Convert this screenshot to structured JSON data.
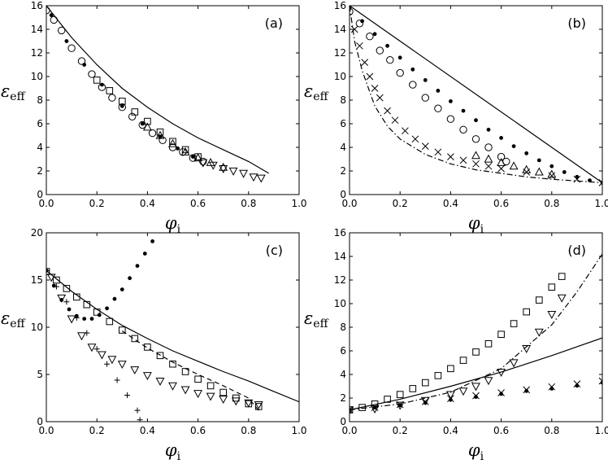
{
  "chart_data": [
    {
      "type": "scatter",
      "panel_label": "(a)",
      "xlabel": "φ",
      "xlabel_sub": "i",
      "ylabel": "ε",
      "ylabel_sub": "eff",
      "xlim": [
        0,
        1.0
      ],
      "ylim": [
        0,
        16
      ],
      "xticks": [
        0.0,
        0.2,
        0.4,
        0.6,
        0.8,
        1.0
      ],
      "yticks": [
        0,
        2,
        4,
        6,
        8,
        10,
        12,
        14,
        16
      ],
      "xtick_labels": [
        "0.0",
        "0.2",
        "0.4",
        "0.6",
        "0.8",
        "1.0"
      ],
      "ytick_labels": [
        "0",
        "2",
        "4",
        "6",
        "8",
        "10",
        "12",
        "14",
        "16"
      ],
      "grid": false,
      "series": [
        {
          "marker": "line",
          "style": "solid",
          "x": [
            0.0,
            0.1,
            0.2,
            0.3,
            0.4,
            0.5,
            0.6,
            0.7,
            0.8,
            0.88
          ],
          "y": [
            16.0,
            13.3,
            11.0,
            9.0,
            7.4,
            6.0,
            4.8,
            3.8,
            2.8,
            1.8
          ]
        },
        {
          "marker": "circle",
          "x": [
            0.0,
            0.03,
            0.06,
            0.1,
            0.14,
            0.18,
            0.22,
            0.26,
            0.3,
            0.34,
            0.38,
            0.42,
            0.46,
            0.5,
            0.54,
            0.58,
            0.62
          ],
          "y": [
            15.6,
            14.8,
            13.9,
            12.4,
            11.3,
            10.2,
            9.1,
            8.2,
            7.4,
            6.6,
            5.9,
            5.2,
            4.6,
            4.0,
            3.6,
            3.1,
            2.8
          ]
        },
        {
          "marker": "dot",
          "x": [
            0.02,
            0.08,
            0.15,
            0.22,
            0.3,
            0.38,
            0.45,
            0.52,
            0.58
          ],
          "y": [
            15.2,
            13.0,
            11.0,
            9.3,
            7.5,
            6.0,
            4.9,
            3.9,
            3.2
          ]
        },
        {
          "marker": "square",
          "x": [
            0.2,
            0.25,
            0.3,
            0.35,
            0.4,
            0.45,
            0.5,
            0.55,
            0.6
          ],
          "y": [
            9.7,
            8.8,
            7.9,
            7.0,
            6.2,
            5.3,
            4.5,
            3.8,
            3.2
          ]
        },
        {
          "marker": "triangle-up",
          "x": [
            0.4,
            0.45,
            0.5,
            0.55,
            0.6,
            0.65,
            0.7
          ],
          "y": [
            5.7,
            5.0,
            4.3,
            3.6,
            3.1,
            2.7,
            2.3
          ]
        },
        {
          "marker": "triangle-down",
          "x": [
            0.62,
            0.66,
            0.7,
            0.74,
            0.78,
            0.82,
            0.85
          ],
          "y": [
            2.7,
            2.5,
            2.2,
            2.0,
            1.8,
            1.5,
            1.4
          ]
        }
      ]
    },
    {
      "type": "scatter",
      "panel_label": "(b)",
      "xlabel": "φ",
      "xlabel_sub": "i",
      "ylabel": "ε",
      "ylabel_sub": "eff",
      "xlim": [
        0,
        1.0
      ],
      "ylim": [
        0,
        16
      ],
      "xticks": [
        0.0,
        0.2,
        0.4,
        0.6,
        0.8,
        1.0
      ],
      "yticks": [
        0,
        2,
        4,
        6,
        8,
        10,
        12,
        14,
        16
      ],
      "xtick_labels": [
        "0.0",
        "0.2",
        "0.4",
        "0.6",
        "0.8",
        "1.0"
      ],
      "ytick_labels": [
        "0",
        "2",
        "4",
        "6",
        "8",
        "10",
        "12",
        "14",
        "16"
      ],
      "grid": false,
      "series": [
        {
          "marker": "line",
          "style": "solid",
          "x": [
            0.0,
            1.0
          ],
          "y": [
            16.0,
            1.0
          ]
        },
        {
          "marker": "line",
          "style": "dashdot",
          "x": [
            0.0,
            0.02,
            0.05,
            0.1,
            0.15,
            0.2,
            0.3,
            0.4,
            0.5,
            0.6,
            0.7,
            0.8,
            0.9,
            1.0
          ],
          "y": [
            16.0,
            13.0,
            10.5,
            7.5,
            5.8,
            4.7,
            3.4,
            2.6,
            2.1,
            1.8,
            1.5,
            1.3,
            1.15,
            1.0
          ]
        },
        {
          "marker": "dot",
          "x": [
            0.0,
            0.05,
            0.1,
            0.15,
            0.2,
            0.25,
            0.3,
            0.35,
            0.4,
            0.45,
            0.5,
            0.55,
            0.6,
            0.65,
            0.7,
            0.75,
            0.8,
            0.85,
            0.9,
            0.95,
            1.0
          ],
          "y": [
            15.8,
            14.7,
            13.6,
            12.6,
            11.6,
            10.6,
            9.7,
            8.8,
            7.9,
            7.1,
            6.3,
            5.5,
            4.8,
            4.1,
            3.5,
            2.9,
            2.4,
            1.9,
            1.5,
            1.2,
            1.0
          ]
        },
        {
          "marker": "circle",
          "x": [
            0.0,
            0.04,
            0.08,
            0.12,
            0.16,
            0.2,
            0.25,
            0.3,
            0.35,
            0.4,
            0.45,
            0.5,
            0.55,
            0.6,
            0.62
          ],
          "y": [
            15.5,
            14.5,
            13.4,
            12.2,
            11.4,
            10.3,
            9.3,
            8.2,
            7.3,
            6.4,
            5.5,
            4.7,
            4.0,
            3.2,
            2.8
          ]
        },
        {
          "marker": "cross",
          "x": [
            0.02,
            0.04,
            0.06,
            0.08,
            0.1,
            0.12,
            0.15,
            0.18,
            0.22,
            0.26,
            0.3,
            0.35,
            0.4,
            0.45,
            0.5,
            0.55,
            0.6,
            0.7,
            0.8,
            0.9,
            1.0
          ],
          "y": [
            14.0,
            12.6,
            11.2,
            10.0,
            9.0,
            8.2,
            7.1,
            6.3,
            5.4,
            4.7,
            4.1,
            3.6,
            3.2,
            2.9,
            2.6,
            2.4,
            2.2,
            1.9,
            1.6,
            1.3,
            1.0
          ]
        },
        {
          "marker": "triangle-up",
          "x": [
            0.5,
            0.55,
            0.6,
            0.65,
            0.7,
            0.75,
            0.8
          ],
          "y": [
            3.3,
            3.0,
            2.7,
            2.4,
            2.1,
            1.9,
            1.7
          ]
        }
      ]
    },
    {
      "type": "scatter",
      "panel_label": "(c)",
      "xlabel": "φ",
      "xlabel_sub": "i",
      "ylabel": "ε",
      "ylabel_sub": "eff",
      "xlim": [
        0,
        1.0
      ],
      "ylim": [
        0,
        20
      ],
      "xticks": [
        0.0,
        0.2,
        0.4,
        0.6,
        0.8,
        1.0
      ],
      "yticks": [
        0,
        5,
        10,
        15,
        20
      ],
      "xtick_labels": [
        "0.0",
        "0.2",
        "0.4",
        "0.6",
        "0.8",
        "1.0"
      ],
      "ytick_labels": [
        "0",
        "5",
        "10",
        "15",
        "20"
      ],
      "grid": false,
      "series": [
        {
          "marker": "line",
          "style": "solid",
          "x": [
            0.0,
            0.1,
            0.2,
            0.3,
            0.4,
            0.5,
            0.6,
            0.7,
            0.8,
            0.9,
            1.0
          ],
          "y": [
            16.0,
            13.8,
            11.9,
            10.2,
            8.8,
            7.5,
            6.4,
            5.3,
            4.3,
            3.2,
            2.1
          ]
        },
        {
          "marker": "line",
          "style": "dashed",
          "x": [
            0.3,
            0.4,
            0.5,
            0.6,
            0.7,
            0.8,
            0.84
          ],
          "y": [
            9.6,
            7.8,
            6.3,
            5.0,
            3.8,
            2.5,
            1.2
          ]
        },
        {
          "marker": "dot",
          "x": [
            0.0,
            0.03,
            0.06,
            0.09,
            0.12,
            0.15,
            0.18,
            0.21,
            0.24,
            0.27,
            0.3,
            0.33,
            0.36,
            0.39,
            0.42
          ],
          "y": [
            16.0,
            14.4,
            12.9,
            11.9,
            11.2,
            10.9,
            10.9,
            11.3,
            12.0,
            13.0,
            14.0,
            15.2,
            16.5,
            17.8,
            19.1
          ]
        },
        {
          "marker": "plus",
          "x": [
            0.0,
            0.04,
            0.08,
            0.12,
            0.16,
            0.2,
            0.24,
            0.28,
            0.32,
            0.36,
            0.37
          ],
          "y": [
            16.0,
            14.3,
            12.7,
            11.0,
            9.4,
            7.7,
            6.1,
            4.4,
            2.8,
            1.2,
            0.2
          ]
        },
        {
          "marker": "square",
          "x": [
            0.0,
            0.04,
            0.08,
            0.12,
            0.16,
            0.2,
            0.25,
            0.3,
            0.35,
            0.4,
            0.45,
            0.5,
            0.55,
            0.6,
            0.65,
            0.7,
            0.75,
            0.8,
            0.84
          ],
          "y": [
            15.9,
            15.0,
            14.1,
            13.2,
            12.4,
            11.6,
            10.6,
            9.7,
            8.8,
            7.9,
            7.0,
            6.1,
            5.3,
            4.5,
            3.8,
            3.1,
            2.5,
            1.9,
            1.6
          ]
        },
        {
          "marker": "triangle-down",
          "x": [
            0.02,
            0.06,
            0.1,
            0.14,
            0.18,
            0.22,
            0.26,
            0.3,
            0.35,
            0.4,
            0.45,
            0.5,
            0.55,
            0.6,
            0.65,
            0.7,
            0.75,
            0.8,
            0.84
          ],
          "y": [
            15.3,
            13.1,
            10.9,
            9.1,
            7.9,
            7.1,
            6.6,
            6.1,
            5.5,
            4.9,
            4.3,
            3.8,
            3.4,
            3.0,
            2.7,
            2.4,
            2.2,
            2.0,
            1.8
          ]
        }
      ]
    },
    {
      "type": "scatter",
      "panel_label": "(d)",
      "xlabel": "φ",
      "xlabel_sub": "i",
      "ylabel": "ε",
      "ylabel_sub": "eff",
      "xlim": [
        0,
        1.0
      ],
      "ylim": [
        0,
        16
      ],
      "xticks": [
        0.0,
        0.2,
        0.4,
        0.6,
        0.8,
        1.0
      ],
      "yticks": [
        0,
        2,
        4,
        6,
        8,
        10,
        12,
        14,
        16
      ],
      "xtick_labels": [
        "0.0",
        "0.2",
        "0.4",
        "0.6",
        "0.8",
        "1.0"
      ],
      "ytick_labels": [
        "0",
        "2",
        "4",
        "6",
        "8",
        "10",
        "12",
        "14",
        "16"
      ],
      "grid": false,
      "series": [
        {
          "marker": "line",
          "style": "solid",
          "x": [
            0.0,
            0.2,
            0.4,
            0.6,
            0.8,
            1.0
          ],
          "y": [
            1.0,
            1.9,
            3.0,
            4.2,
            5.6,
            7.1
          ]
        },
        {
          "marker": "line",
          "style": "dashdot",
          "x": [
            0.0,
            0.2,
            0.4,
            0.6,
            0.8,
            0.9,
            1.0
          ],
          "y": [
            1.0,
            1.5,
            2.5,
            4.5,
            8.2,
            11.0,
            14.2
          ]
        },
        {
          "marker": "cross",
          "x": [
            0.0,
            0.1,
            0.2,
            0.3,
            0.4,
            0.5,
            0.6,
            0.7,
            0.8,
            0.9,
            1.0
          ],
          "y": [
            1.0,
            1.2,
            1.45,
            1.7,
            1.95,
            2.2,
            2.45,
            2.7,
            2.95,
            3.2,
            3.45
          ]
        },
        {
          "marker": "dot",
          "x": [
            0.0,
            0.1,
            0.2,
            0.3,
            0.4,
            0.5,
            0.6,
            0.7,
            0.8,
            0.9,
            1.0
          ],
          "y": [
            1.0,
            1.2,
            1.4,
            1.6,
            1.85,
            2.1,
            2.35,
            2.6,
            2.8,
            3.05,
            3.3
          ]
        },
        {
          "marker": "square",
          "x": [
            0.0,
            0.05,
            0.1,
            0.15,
            0.2,
            0.25,
            0.3,
            0.35,
            0.4,
            0.45,
            0.5,
            0.55,
            0.6,
            0.65,
            0.7,
            0.75,
            0.8,
            0.84
          ],
          "y": [
            1.0,
            1.2,
            1.5,
            1.9,
            2.3,
            2.8,
            3.3,
            3.9,
            4.5,
            5.2,
            5.9,
            6.6,
            7.4,
            8.3,
            9.3,
            10.3,
            11.4,
            12.3
          ]
        },
        {
          "marker": "triangle-down",
          "x": [
            0.0,
            0.1,
            0.2,
            0.3,
            0.4,
            0.45,
            0.5,
            0.55,
            0.6,
            0.65,
            0.7,
            0.75,
            0.8,
            0.84
          ],
          "y": [
            1.0,
            1.1,
            1.4,
            1.8,
            2.3,
            2.6,
            3.0,
            3.5,
            4.2,
            5.0,
            6.2,
            7.6,
            9.1,
            10.5
          ]
        }
      ]
    }
  ]
}
